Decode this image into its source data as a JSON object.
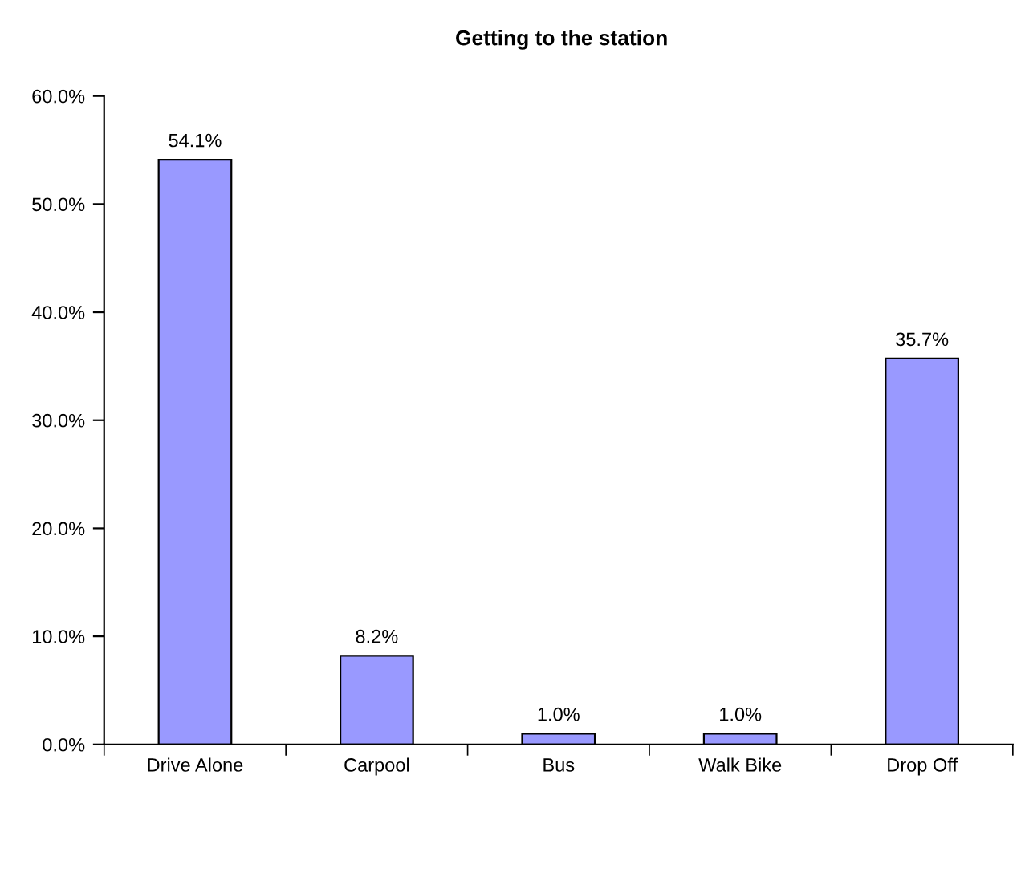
{
  "chart_data": {
    "type": "bar",
    "title": "Getting to the station",
    "categories": [
      "Drive Alone",
      "Carpool",
      "Bus",
      "Walk Bike",
      "Drop Off"
    ],
    "values": [
      54.1,
      8.2,
      1.0,
      1.0,
      35.7
    ],
    "value_labels": [
      "54.1%",
      "8.2%",
      "1.0%",
      "1.0%",
      "35.7%"
    ],
    "color": "#9999ff",
    "ylim": [
      0,
      60
    ],
    "yticks": [
      {
        "value": 0,
        "label": "0.0%"
      },
      {
        "value": 10,
        "label": "10.0%"
      },
      {
        "value": 20,
        "label": "20.0%"
      },
      {
        "value": 30,
        "label": "30.0%"
      },
      {
        "value": 40,
        "label": "40.0%"
      },
      {
        "value": 50,
        "label": "50.0%"
      },
      {
        "value": 60,
        "label": "60.0%"
      }
    ],
    "grid": false,
    "legend": false
  }
}
